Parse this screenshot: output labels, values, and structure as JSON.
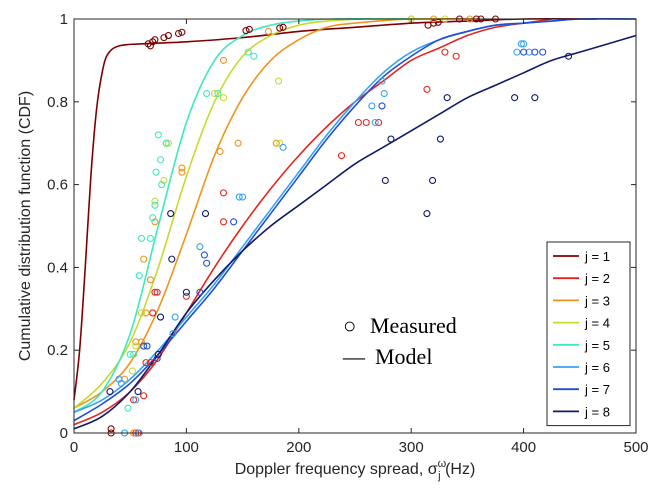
{
  "chart_data": {
    "type": "line",
    "title": "",
    "xlabel": "Doppler frequency spread, σ",
    "xlabel_sub": "j",
    "xlabel_sup": "ω",
    "xlabel_unit": " (Hz)",
    "ylabel": "Cumulative distribution function (CDF)",
    "xlim": [
      0,
      500
    ],
    "ylim": [
      0,
      1
    ],
    "x_ticks": [
      "0",
      "100",
      "200",
      "300",
      "400",
      "500"
    ],
    "y_ticks": [
      "0",
      "0.2",
      "0.4",
      "0.6",
      "0.8",
      "1"
    ],
    "grid": false,
    "legend_position": "bottom-right",
    "key": {
      "measured_label": "Measured",
      "model_label": "Model",
      "measured_symbol": "○",
      "model_symbol": "—"
    },
    "series": [
      {
        "name": "j = 1",
        "color": "#7f0000",
        "model": [
          [
            0,
            0.08
          ],
          [
            5,
            0.2
          ],
          [
            10,
            0.4
          ],
          [
            15,
            0.62
          ],
          [
            20,
            0.78
          ],
          [
            25,
            0.87
          ],
          [
            30,
            0.915
          ],
          [
            40,
            0.935
          ],
          [
            60,
            0.94
          ],
          [
            100,
            0.945
          ],
          [
            150,
            0.955
          ],
          [
            200,
            0.97
          ],
          [
            250,
            0.98
          ],
          [
            300,
            0.99
          ],
          [
            350,
            0.995
          ],
          [
            400,
            1.0
          ],
          [
            465,
            1.0
          ]
        ],
        "measured": [
          [
            33,
            0.0
          ],
          [
            33,
            0.01
          ],
          [
            66,
            0.94
          ],
          [
            68,
            0.935
          ],
          [
            70,
            0.945
          ],
          [
            72,
            0.95
          ],
          [
            80,
            0.955
          ],
          [
            84,
            0.96
          ],
          [
            93,
            0.965
          ],
          [
            96,
            0.968
          ],
          [
            153,
            0.972
          ],
          [
            156,
            0.975
          ],
          [
            183,
            0.978
          ],
          [
            186,
            0.98
          ],
          [
            315,
            0.985
          ],
          [
            320,
            0.99
          ],
          [
            324,
            0.992
          ],
          [
            343,
            1.0
          ],
          [
            358,
            1.0
          ],
          [
            362,
            1.0
          ],
          [
            375,
            1.0
          ]
        ]
      },
      {
        "name": "j = 2",
        "color": "#e3261b",
        "model": [
          [
            0,
            0.02
          ],
          [
            25,
            0.05
          ],
          [
            50,
            0.1
          ],
          [
            75,
            0.18
          ],
          [
            100,
            0.29
          ],
          [
            125,
            0.4
          ],
          [
            150,
            0.5
          ],
          [
            175,
            0.59
          ],
          [
            200,
            0.67
          ],
          [
            225,
            0.74
          ],
          [
            250,
            0.8
          ],
          [
            275,
            0.85
          ],
          [
            300,
            0.9
          ],
          [
            325,
            0.93
          ],
          [
            350,
            0.96
          ],
          [
            375,
            0.98
          ],
          [
            400,
            0.99
          ],
          [
            425,
            1.0
          ]
        ],
        "measured": [
          [
            53,
            0.08
          ],
          [
            55,
            0.0
          ],
          [
            57,
            0.0
          ],
          [
            62,
            0.09
          ],
          [
            64,
            0.17
          ],
          [
            68,
            0.17
          ],
          [
            70,
            0.29
          ],
          [
            72,
            0.34
          ],
          [
            74,
            0.34
          ],
          [
            100,
            0.33
          ],
          [
            133,
            0.51
          ],
          [
            133,
            0.58
          ],
          [
            238,
            0.67
          ],
          [
            253,
            0.75
          ],
          [
            260,
            0.75
          ],
          [
            271,
            0.75
          ],
          [
            314,
            0.83
          ],
          [
            330,
            0.92
          ],
          [
            340,
            0.91
          ]
        ]
      },
      {
        "name": "j = 3",
        "color": "#f0931b",
        "model": [
          [
            0,
            0.06
          ],
          [
            25,
            0.1
          ],
          [
            50,
            0.17
          ],
          [
            75,
            0.3
          ],
          [
            100,
            0.48
          ],
          [
            125,
            0.67
          ],
          [
            150,
            0.81
          ],
          [
            175,
            0.9
          ],
          [
            200,
            0.95
          ],
          [
            225,
            0.98
          ],
          [
            250,
            0.99
          ],
          [
            300,
            1.0
          ],
          [
            360,
            1.0
          ]
        ],
        "measured": [
          [
            45,
            0.13
          ],
          [
            53,
            0.0
          ],
          [
            55,
            0.22
          ],
          [
            60,
            0.22
          ],
          [
            62,
            0.42
          ],
          [
            64,
            0.29
          ],
          [
            68,
            0.37
          ],
          [
            72,
            0.51
          ],
          [
            96,
            0.63
          ],
          [
            96,
            0.64
          ],
          [
            130,
            0.68
          ],
          [
            133,
            0.9
          ],
          [
            146,
            0.7
          ],
          [
            173,
            0.97
          ],
          [
            180,
            0.7
          ],
          [
            300,
            1.0
          ],
          [
            320,
            1.0
          ],
          [
            352,
            1.0
          ]
        ]
      },
      {
        "name": "j = 4",
        "color": "#c9d92e",
        "model": [
          [
            0,
            0.06
          ],
          [
            25,
            0.12
          ],
          [
            50,
            0.22
          ],
          [
            75,
            0.4
          ],
          [
            100,
            0.62
          ],
          [
            125,
            0.8
          ],
          [
            150,
            0.91
          ],
          [
            175,
            0.96
          ],
          [
            200,
            0.985
          ],
          [
            225,
            0.995
          ],
          [
            260,
            1.0
          ],
          [
            330,
            1.0
          ]
        ],
        "measured": [
          [
            52,
            0.15
          ],
          [
            55,
            0.21
          ],
          [
            60,
            0.29
          ],
          [
            72,
            0.56
          ],
          [
            80,
            0.61
          ],
          [
            82,
            0.7
          ],
          [
            84,
            0.7
          ],
          [
            125,
            0.82
          ],
          [
            133,
            0.81
          ],
          [
            182,
            0.85
          ],
          [
            183,
            0.7
          ],
          [
            300,
            1.0
          ],
          [
            330,
            1.0
          ]
        ]
      },
      {
        "name": "j = 5",
        "color": "#3ee8c0",
        "model": [
          [
            0,
            0.05
          ],
          [
            25,
            0.1
          ],
          [
            50,
            0.24
          ],
          [
            75,
            0.5
          ],
          [
            100,
            0.75
          ],
          [
            125,
            0.9
          ],
          [
            150,
            0.96
          ],
          [
            175,
            0.985
          ],
          [
            200,
            0.995
          ],
          [
            230,
            1.0
          ],
          [
            300,
            1.0
          ]
        ],
        "measured": [
          [
            45,
            0.0
          ],
          [
            48,
            0.06
          ],
          [
            50,
            0.19
          ],
          [
            53,
            0.19
          ],
          [
            58,
            0.38
          ],
          [
            60,
            0.47
          ],
          [
            68,
            0.47
          ],
          [
            70,
            0.52
          ],
          [
            72,
            0.55
          ],
          [
            73,
            0.63
          ],
          [
            75,
            0.72
          ],
          [
            77,
            0.66
          ],
          [
            78,
            0.6
          ],
          [
            82,
            0.7
          ],
          [
            118,
            0.82
          ],
          [
            128,
            0.82
          ],
          [
            155,
            0.92
          ],
          [
            160,
            0.91
          ]
        ]
      },
      {
        "name": "j = 6",
        "color": "#36a3f2",
        "model": [
          [
            0,
            0.05
          ],
          [
            25,
            0.08
          ],
          [
            50,
            0.13
          ],
          [
            75,
            0.2
          ],
          [
            100,
            0.28
          ],
          [
            125,
            0.36
          ],
          [
            150,
            0.45
          ],
          [
            175,
            0.54
          ],
          [
            200,
            0.63
          ],
          [
            225,
            0.72
          ],
          [
            250,
            0.8
          ],
          [
            275,
            0.87
          ],
          [
            300,
            0.92
          ],
          [
            325,
            0.95
          ],
          [
            350,
            0.97
          ],
          [
            375,
            0.985
          ],
          [
            400,
            0.99
          ],
          [
            425,
            0.995
          ],
          [
            450,
            1.0
          ],
          [
            500,
            1.0
          ]
        ],
        "measured": [
          [
            40,
            0.13
          ],
          [
            42,
            0.12
          ],
          [
            45,
            0.0
          ],
          [
            55,
            0.08
          ],
          [
            58,
            0.0
          ],
          [
            88,
            0.24
          ],
          [
            90,
            0.28
          ],
          [
            112,
            0.45
          ],
          [
            147,
            0.57
          ],
          [
            150,
            0.57
          ],
          [
            186,
            0.69
          ],
          [
            265,
            0.79
          ],
          [
            268,
            0.75
          ],
          [
            274,
            0.85
          ],
          [
            276,
            0.82
          ],
          [
            394,
            0.92
          ],
          [
            398,
            0.94
          ],
          [
            400,
            0.94
          ],
          [
            405,
            0.92
          ]
        ]
      },
      {
        "name": "j = 7",
        "color": "#1f4fd9",
        "model": [
          [
            0,
            0.03
          ],
          [
            25,
            0.07
          ],
          [
            50,
            0.12
          ],
          [
            75,
            0.19
          ],
          [
            100,
            0.27
          ],
          [
            125,
            0.35
          ],
          [
            150,
            0.44
          ],
          [
            175,
            0.53
          ],
          [
            200,
            0.62
          ],
          [
            225,
            0.71
          ],
          [
            250,
            0.79
          ],
          [
            275,
            0.86
          ],
          [
            300,
            0.91
          ],
          [
            325,
            0.95
          ],
          [
            350,
            0.97
          ],
          [
            375,
            0.985
          ],
          [
            400,
            0.99
          ],
          [
            425,
            0.995
          ],
          [
            450,
            1.0
          ],
          [
            500,
            1.0
          ]
        ],
        "measured": [
          [
            62,
            0.21
          ],
          [
            65,
            0.21
          ],
          [
            74,
            0.18
          ],
          [
            112,
            0.34
          ],
          [
            116,
            0.43
          ],
          [
            118,
            0.41
          ],
          [
            142,
            0.51
          ],
          [
            274,
            0.79
          ],
          [
            400,
            0.92
          ],
          [
            410,
            0.92
          ],
          [
            417,
            0.92
          ]
        ]
      },
      {
        "name": "j = 8",
        "color": "#0f1a6b",
        "model": [
          [
            0,
            0.01
          ],
          [
            25,
            0.04
          ],
          [
            50,
            0.1
          ],
          [
            75,
            0.19
          ],
          [
            100,
            0.29
          ],
          [
            125,
            0.37
          ],
          [
            150,
            0.44
          ],
          [
            175,
            0.5
          ],
          [
            200,
            0.55
          ],
          [
            225,
            0.6
          ],
          [
            250,
            0.65
          ],
          [
            275,
            0.69
          ],
          [
            300,
            0.73
          ],
          [
            325,
            0.77
          ],
          [
            350,
            0.81
          ],
          [
            375,
            0.84
          ],
          [
            400,
            0.87
          ],
          [
            425,
            0.9
          ],
          [
            450,
            0.92
          ],
          [
            475,
            0.94
          ],
          [
            500,
            0.96
          ]
        ],
        "measured": [
          [
            32,
            0.1
          ],
          [
            57,
            0.1
          ],
          [
            75,
            0.19
          ],
          [
            77,
            0.28
          ],
          [
            86,
            0.53
          ],
          [
            87,
            0.42
          ],
          [
            100,
            0.34
          ],
          [
            117,
            0.53
          ],
          [
            277,
            0.61
          ],
          [
            282,
            0.71
          ],
          [
            314,
            0.53
          ],
          [
            319,
            0.61
          ],
          [
            326,
            0.71
          ],
          [
            332,
            0.81
          ],
          [
            392,
            0.81
          ],
          [
            410,
            0.81
          ],
          [
            440,
            0.91
          ]
        ]
      }
    ]
  }
}
